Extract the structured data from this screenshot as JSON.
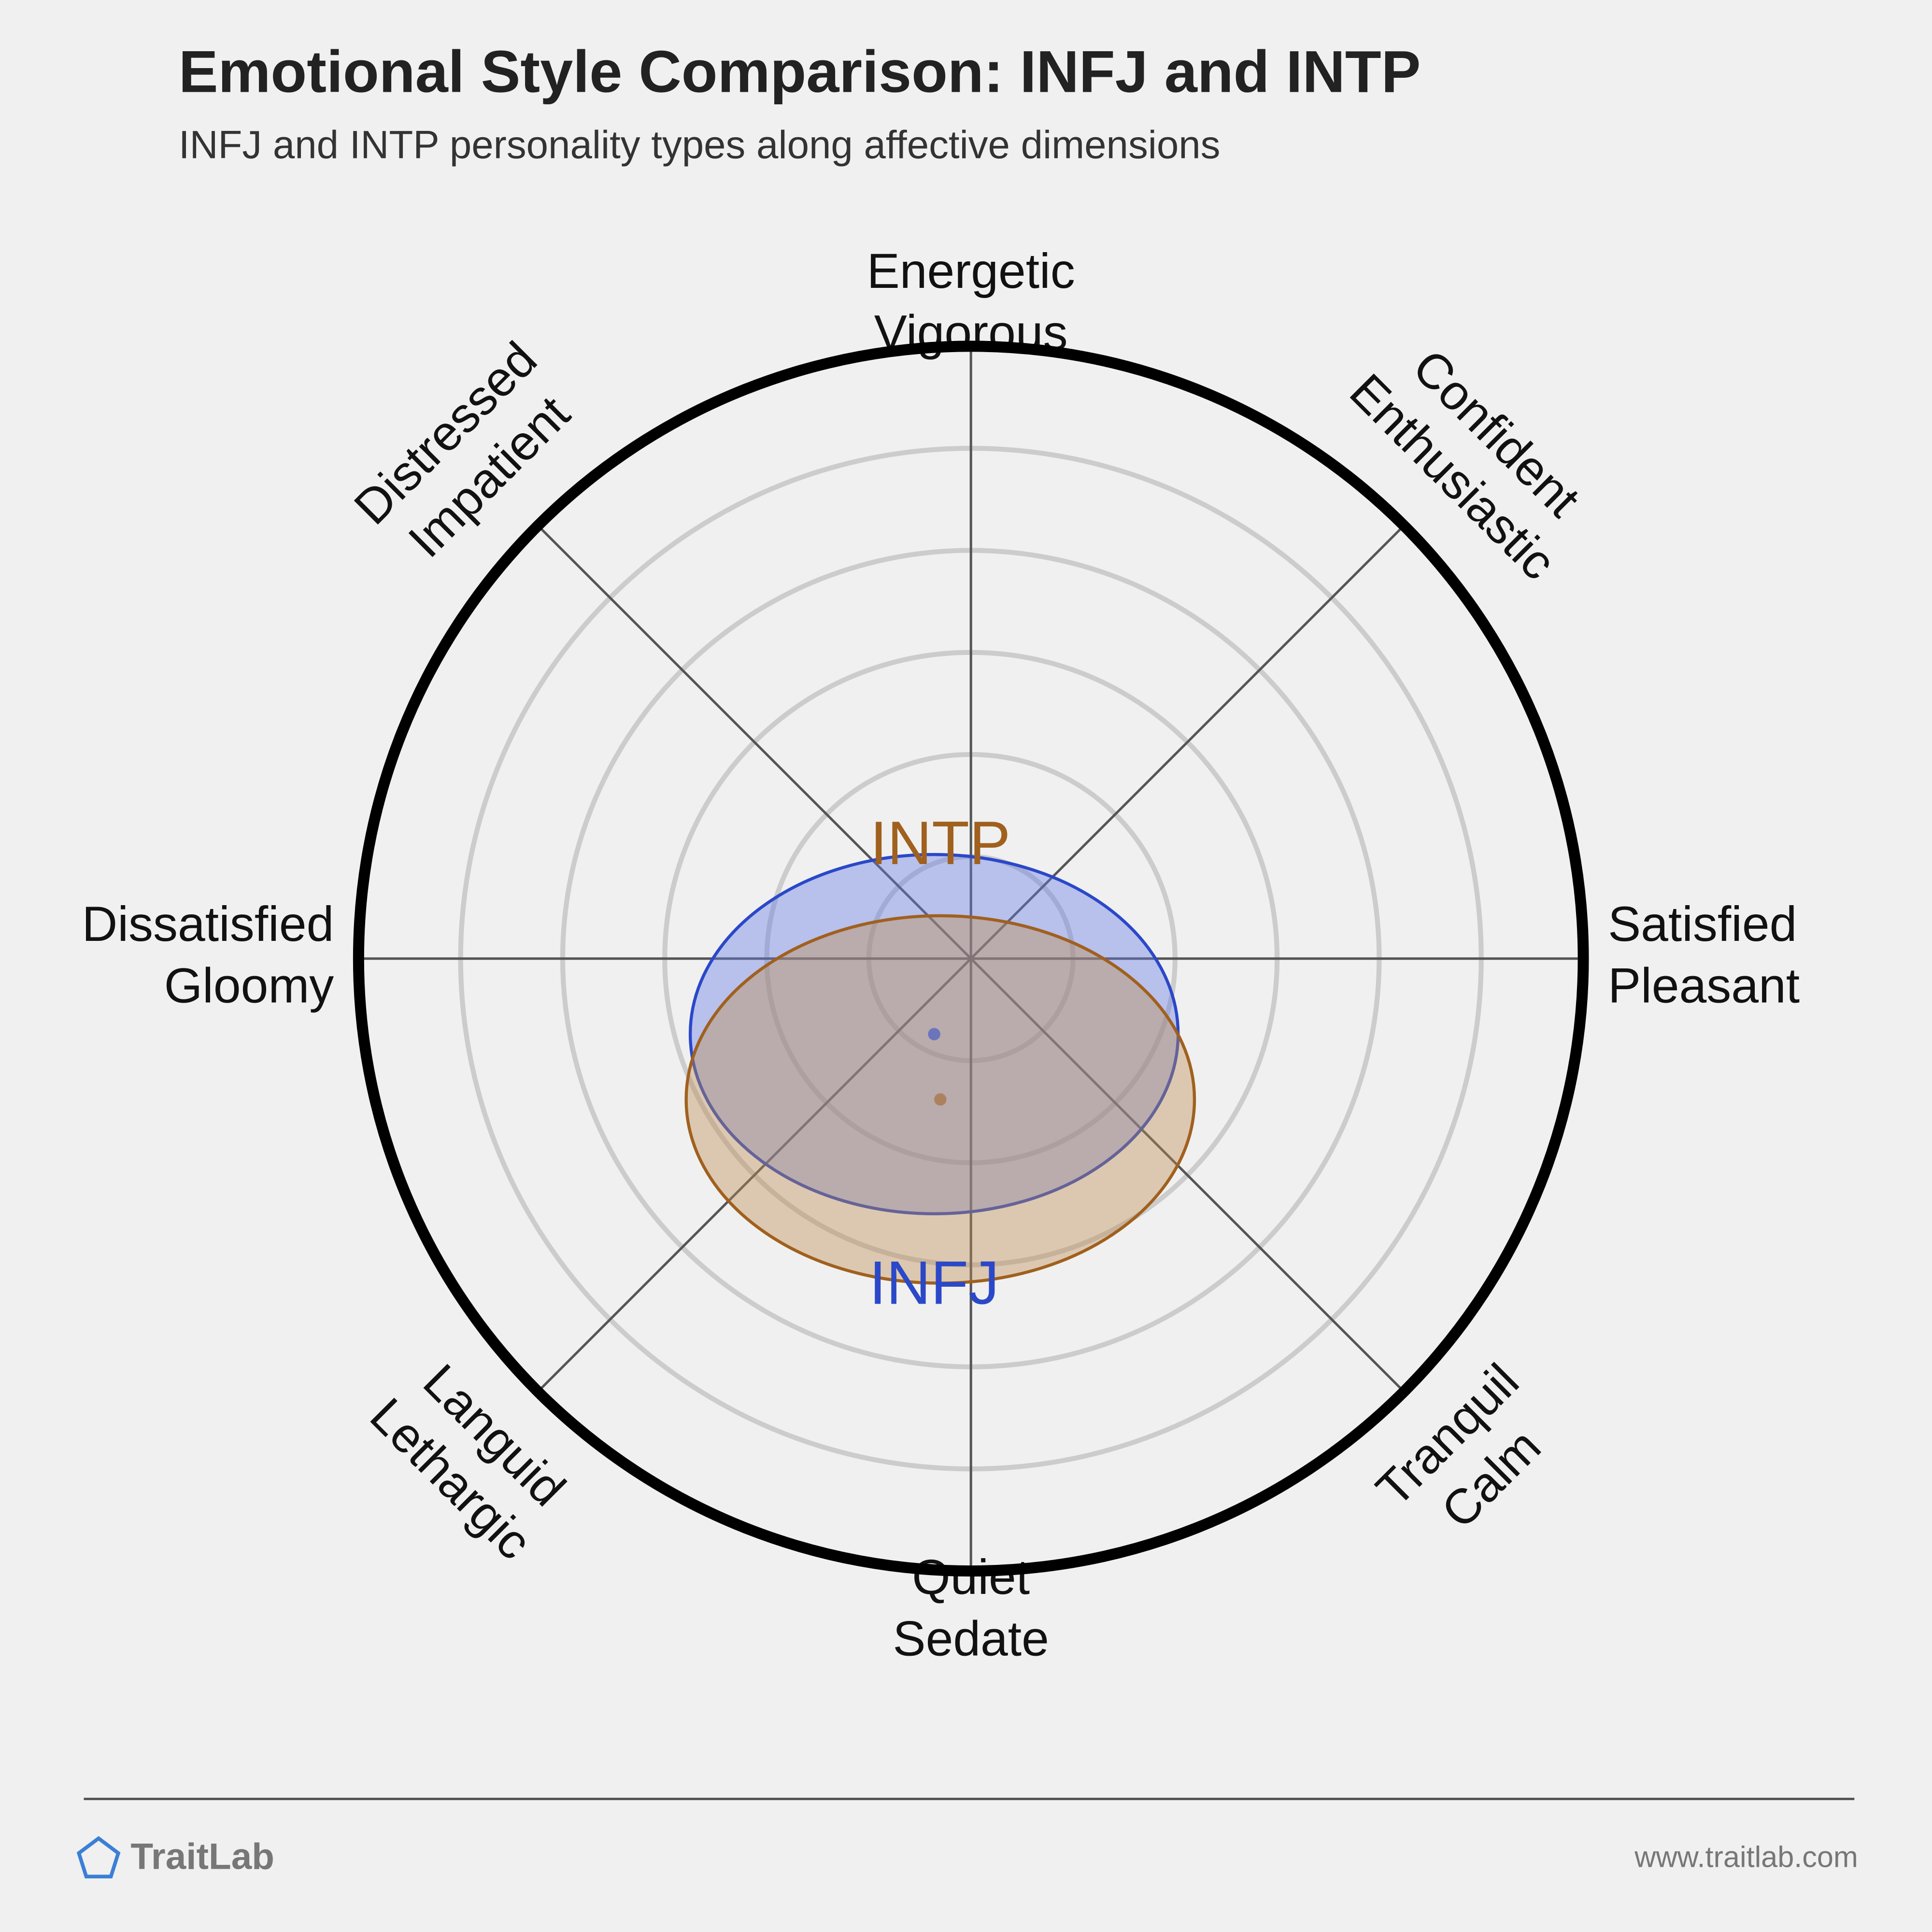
{
  "chart_data": {
    "type": "circumplex",
    "title": "Emotional Style Comparison: INFJ and INTP",
    "subtitle": "INFJ and INTP personality types along affective dimensions",
    "axes": [
      [
        "Energetic",
        "Vigorous"
      ],
      [
        "Confident",
        "Enthusiastic"
      ],
      [
        "Satisfied",
        "Pleasant"
      ],
      [
        "Tranquil",
        "Calm"
      ],
      [
        "Quiet",
        "Sedate"
      ],
      [
        "Languid",
        "Lethargic"
      ],
      [
        "Dissatisfied",
        "Gloomy"
      ],
      [
        "Distressed",
        "Impatient"
      ]
    ],
    "rlim": [
      0,
      6
    ],
    "rticks": [
      1,
      2,
      3,
      4,
      5
    ],
    "series": [
      {
        "name": "INFJ",
        "color": "#2a48c8",
        "x": -0.36,
        "y": -0.74,
        "rx": 2.39,
        "ry": 1.76
      },
      {
        "name": "INTP",
        "color": "#a0601e",
        "x": -0.3,
        "y": -1.38,
        "rx": 2.49,
        "ry": 1.8
      }
    ]
  },
  "footer": {
    "brand": "TraitLab",
    "url": "www.traitlab.com"
  }
}
